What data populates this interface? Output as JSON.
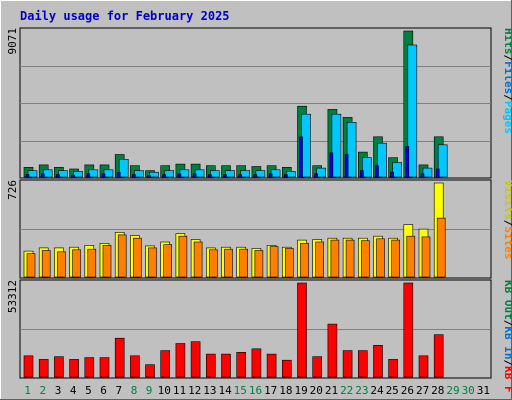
{
  "chart_data": {
    "type": "bar",
    "title": "Daily usage for February 2025",
    "x": [
      "1",
      "2",
      "3",
      "4",
      "5",
      "6",
      "7",
      "8",
      "9",
      "10",
      "11",
      "12",
      "13",
      "14",
      "15",
      "16",
      "17",
      "18",
      "19",
      "20",
      "21",
      "22",
      "23",
      "24",
      "25",
      "26",
      "27",
      "28",
      "29",
      "30",
      "31"
    ],
    "weekend_days": [
      "1",
      "2",
      "8",
      "9",
      "15",
      "16",
      "22",
      "23",
      "29",
      "30"
    ],
    "panels": [
      {
        "id": "pages-files-hits",
        "ymax_label": "9071",
        "ymax": 9071,
        "legend": [
          "Pages",
          "/",
          "Files",
          "/",
          "Hits"
        ],
        "series": [
          {
            "name": "Hits",
            "color": "#008040",
            "values": [
              600,
              750,
              600,
              500,
              750,
              750,
              1400,
              700,
              400,
              700,
              800,
              800,
              700,
              700,
              700,
              650,
              700,
              600,
              4400,
              700,
              4200,
              3700,
              1550,
              2500,
              1200,
              9071,
              750,
              2500,
              null,
              null,
              null
            ]
          },
          {
            "name": "Files",
            "color": "#00c8ff",
            "values": [
              400,
              450,
              400,
              350,
              450,
              450,
              1100,
              400,
              300,
              400,
              450,
              450,
              400,
              400,
              400,
              400,
              450,
              350,
              3900,
              550,
              3900,
              3400,
              1200,
              2100,
              900,
              8200,
              550,
              2000,
              null,
              null,
              null
            ]
          },
          {
            "name": "Pages",
            "color": "#0000ff",
            "values": [
              150,
              200,
              150,
              120,
              200,
              200,
              300,
              150,
              100,
              150,
              200,
              200,
              150,
              150,
              150,
              150,
              200,
              150,
              2500,
              200,
              1500,
              1400,
              400,
              700,
              300,
              1900,
              200,
              500,
              null,
              null,
              null
            ]
          }
        ]
      },
      {
        "id": "visits-sites",
        "ymax_label": "726",
        "ymax": 726,
        "legend": [
          "Visits",
          "/",
          "Sites"
        ],
        "series": [
          {
            "name": "Visits",
            "color": "#ffff00",
            "values": [
              200,
              225,
              225,
              230,
              245,
              260,
              345,
              320,
              240,
              270,
              335,
              290,
              225,
              230,
              230,
              220,
              245,
              230,
              285,
              290,
              300,
              300,
              300,
              315,
              300,
              405,
              370,
              726,
              null,
              null,
              null
            ]
          },
          {
            "name": "Sites",
            "color": "#ff8000",
            "values": [
              180,
              205,
              195,
              210,
              215,
              245,
              325,
              300,
              225,
              250,
              315,
              270,
              210,
              215,
              215,
              205,
              235,
              220,
              260,
              270,
              285,
              285,
              280,
              295,
              285,
              315,
              310,
              455,
              null,
              null,
              null
            ]
          }
        ]
      },
      {
        "id": "kb",
        "ymax_label": "53312",
        "ymax": 53312,
        "legend": [
          "KB F",
          "/",
          "KB In",
          "/",
          "KB Out"
        ],
        "series": [
          {
            "name": "KB F",
            "color": "#ff0000",
            "values": [
              12000,
              10000,
              11500,
              10000,
              11000,
              11000,
              22000,
              12000,
              7000,
              15000,
              19000,
              20000,
              13000,
              13000,
              14000,
              16000,
              13000,
              9500,
              53312,
              11500,
              30000,
              15000,
              15000,
              18000,
              10000,
              53312,
              12000,
              24000,
              null,
              null,
              null
            ]
          }
        ]
      }
    ]
  }
}
